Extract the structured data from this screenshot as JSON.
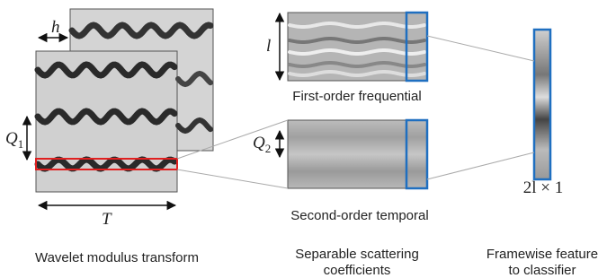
{
  "wavelet": {
    "shift_label": "h",
    "height_label": {
      "symbol": "Q",
      "subscript": "1"
    },
    "width_label": "T",
    "caption": [
      "Wavelet modulus transform"
    ]
  },
  "scattering": {
    "first_order": {
      "height_label": "l",
      "caption": "First-order frequential"
    },
    "second_order": {
      "height_label": {
        "symbol": "Q",
        "subscript": "2"
      },
      "caption": "Second-order temporal"
    },
    "caption": [
      "Separable scattering",
      "coefficients"
    ]
  },
  "feature": {
    "size_label": "2l × 1",
    "caption": [
      "Framewise feature",
      "to classifier"
    ]
  }
}
